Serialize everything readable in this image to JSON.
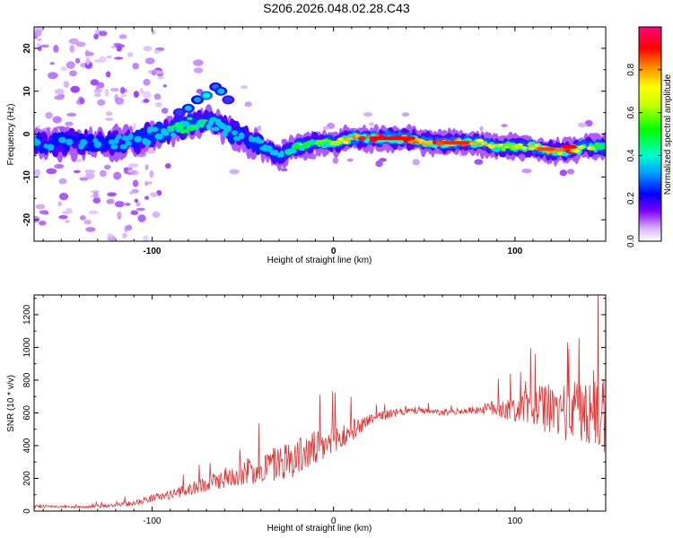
{
  "title": "S206.2026.048.02.28.C43",
  "chart_data": [
    {
      "type": "heatmap",
      "xlabel": "Height of straight line (km)",
      "ylabel": "Frequency (Hz)",
      "xlim": [
        -165,
        150
      ],
      "ylim": [
        -25,
        25
      ],
      "xticks": [
        "-100",
        "0",
        "100"
      ],
      "xtick_values": [
        -100,
        0,
        100
      ],
      "yticks": [
        "-20",
        "-10",
        "0",
        "10",
        "20"
      ],
      "ytick_values": [
        -20,
        -10,
        0,
        10,
        20
      ],
      "colorbar": {
        "label": "Normalized spectral amplitude",
        "range": [
          0,
          1
        ],
        "ticks": [
          "0.0",
          "0.2",
          "0.4",
          "0.6",
          "0.8"
        ],
        "tick_values": [
          0.0,
          0.2,
          0.4,
          0.6,
          0.8
        ],
        "colors": [
          "#ffffff",
          "#e6ccff",
          "#8000ff",
          "#0000ff",
          "#00bfff",
          "#00ffcc",
          "#00ff00",
          "#ffff00",
          "#ff8000",
          "#ff0000",
          "#ff0080"
        ]
      },
      "ridge": {
        "x": [
          -165,
          -150,
          -130,
          -110,
          -100,
          -90,
          -80,
          -70,
          -60,
          -50,
          -40,
          -30,
          -20,
          -10,
          0,
          10,
          20,
          30,
          40,
          50,
          60,
          70,
          80,
          90,
          100,
          110,
          120,
          130,
          140,
          150
        ],
        "y": [
          -2,
          -2,
          -2,
          -2,
          0,
          1,
          2,
          3,
          1,
          -1,
          -3,
          -5,
          -3,
          -2,
          -2,
          -1,
          -1,
          -1,
          -1,
          -2,
          -2,
          -2,
          -2,
          -3,
          -3,
          -3,
          -4,
          -4,
          -3,
          -3
        ],
        "amplitude": [
          0.35,
          0.3,
          0.3,
          0.35,
          0.45,
          0.5,
          0.55,
          0.5,
          0.45,
          0.35,
          0.4,
          0.45,
          0.55,
          0.6,
          0.65,
          0.8,
          0.9,
          0.95,
          0.9,
          0.85,
          0.9,
          0.85,
          0.8,
          0.7,
          0.6,
          0.85,
          0.8,
          0.9,
          0.7,
          0.5
        ]
      }
    },
    {
      "type": "line",
      "xlabel": "Height of straight line (km)",
      "ylabel": "SNR (10 * v/v)",
      "xlim": [
        -165,
        150
      ],
      "ylim": [
        0,
        1320
      ],
      "xticks": [
        "-100",
        "0",
        "100"
      ],
      "xtick_values": [
        -100,
        0,
        100
      ],
      "yticks": [
        "0",
        "200",
        "400",
        "600",
        "800",
        "1000",
        "1200"
      ],
      "ytick_values": [
        0,
        200,
        400,
        600,
        800,
        1000,
        1200
      ],
      "color": "#e83030",
      "series": [
        {
          "name": "SNR",
          "x": [
            -165,
            -150,
            -140,
            -130,
            -120,
            -110,
            -100,
            -90,
            -80,
            -70,
            -60,
            -50,
            -40,
            -30,
            -20,
            -10,
            0,
            10,
            20,
            30,
            40,
            50,
            60,
            70,
            80,
            90,
            100,
            110,
            120,
            130,
            140,
            150
          ],
          "baseline": [
            30,
            25,
            25,
            30,
            35,
            50,
            80,
            100,
            130,
            170,
            200,
            240,
            260,
            300,
            330,
            380,
            420,
            490,
            560,
            590,
            610,
            610,
            600,
            610,
            620,
            630,
            620,
            640,
            620,
            600,
            620,
            600
          ],
          "spread": [
            20,
            15,
            15,
            20,
            25,
            40,
            50,
            60,
            80,
            110,
            140,
            180,
            220,
            260,
            260,
            250,
            230,
            150,
            80,
            60,
            50,
            40,
            40,
            40,
            60,
            120,
            180,
            280,
            350,
            400,
            550,
            600
          ]
        }
      ]
    }
  ]
}
